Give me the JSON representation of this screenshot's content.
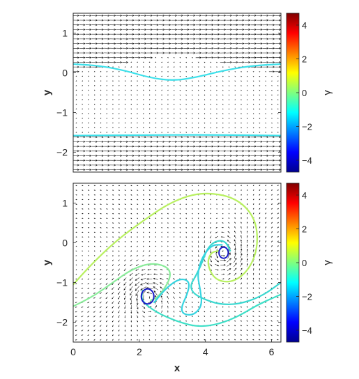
{
  "chart_data": [
    {
      "type": "quiver",
      "title": "",
      "xlabel": "",
      "ylabel": "y",
      "xlim": [
        0,
        6.2832
      ],
      "ylim": [
        -2.5,
        1.5
      ],
      "xticks": [
        "0",
        "2",
        "4",
        "6"
      ],
      "xticks_visible": false,
      "yticks": [
        "1",
        "0",
        "−1",
        "−2"
      ],
      "ytick_values": [
        1,
        0,
        -1,
        -2
      ],
      "field": "shear flow: strong rightward flow for y > 0.2 and y < -1.6, weak return flow between",
      "contour_colors": [
        "#3de0ea",
        "#3de0ea"
      ],
      "contours": [
        {
          "gamma": -1.2,
          "points": [
            [
              0,
              0.22
            ],
            [
              0.8,
              0.18
            ],
            [
              1.6,
              0.05
            ],
            [
              2.3,
              -0.12
            ],
            [
              3.0,
              -0.2
            ],
            [
              3.7,
              -0.12
            ],
            [
              4.5,
              0.05
            ],
            [
              5.4,
              0.18
            ],
            [
              6.2832,
              0.22
            ]
          ]
        },
        {
          "gamma": -1.3,
          "points": [
            [
              0,
              -1.58
            ],
            [
              2,
              -1.57
            ],
            [
              4,
              -1.56
            ],
            [
              6.2832,
              -1.58
            ]
          ]
        }
      ],
      "colorbar": {
        "label": "γ",
        "ticks": [
          "4",
          "2",
          "0",
          "−2",
          "−4"
        ],
        "tick_values": [
          4,
          2,
          0,
          -2,
          -4
        ],
        "range": [
          -4.7,
          4.7
        ],
        "colormap": "jet"
      }
    },
    {
      "type": "quiver",
      "title": "",
      "xlabel": "x",
      "ylabel": "y",
      "xlim": [
        0,
        6.2832
      ],
      "ylim": [
        -2.5,
        1.5
      ],
      "xticks": [
        "0",
        "2",
        "4",
        "6"
      ],
      "xtick_values": [
        0,
        2,
        4,
        6
      ],
      "yticks": [
        "1",
        "0",
        "−1",
        "−2"
      ],
      "ytick_values": [
        1,
        0,
        -1,
        -2
      ],
      "field": "rolled-up shear layer with two co-rotating vortices",
      "vortices": [
        {
          "x": 4.55,
          "y": -0.25
        },
        {
          "x": 2.25,
          "y": -1.35
        }
      ],
      "contours": [
        {
          "gamma": 0.9,
          "color": "#b8f060",
          "points": [
            [
              0,
              -1.05
            ],
            [
              0.6,
              -0.5
            ],
            [
              1.3,
              0.05
            ],
            [
              2.1,
              0.55
            ],
            [
              3.0,
              1.05
            ],
            [
              3.9,
              1.28
            ],
            [
              4.9,
              1.15
            ],
            [
              5.5,
              0.65
            ],
            [
              5.6,
              -0.05
            ],
            [
              5.35,
              -0.65
            ],
            [
              4.85,
              -1.0
            ],
            [
              4.3,
              -0.95
            ],
            [
              4.05,
              -0.55
            ],
            [
              4.15,
              -0.25
            ],
            [
              4.4,
              -0.2
            ]
          ]
        },
        {
          "gamma": 0.4,
          "color": "#8aec9a",
          "points": [
            [
              0,
              -1.6
            ],
            [
              0.6,
              -1.35
            ],
            [
              1.2,
              -1.0
            ],
            [
              1.8,
              -0.65
            ],
            [
              2.4,
              -0.5
            ],
            [
              2.9,
              -0.62
            ],
            [
              2.95,
              -0.9
            ],
            [
              2.6,
              -1.35
            ],
            [
              2.35,
              -1.45
            ]
          ]
        },
        {
          "gamma": -0.3,
          "color": "#3fe0c8",
          "points": [
            [
              6.2832,
              -1.3
            ],
            [
              5.6,
              -1.55
            ],
            [
              5.0,
              -1.85
            ],
            [
              4.4,
              -2.05
            ],
            [
              3.8,
              -2.12
            ],
            [
              3.2,
              -2.0
            ],
            [
              2.5,
              -1.75
            ],
            [
              2.05,
              -1.45
            ],
            [
              2.1,
              -1.2
            ]
          ]
        },
        {
          "gamma": -0.6,
          "color": "#3ad8d0",
          "points": [
            [
              6.2832,
              -1.0
            ],
            [
              5.7,
              -1.35
            ],
            [
              5.0,
              -1.55
            ],
            [
              4.4,
              -1.55
            ],
            [
              3.9,
              -1.4
            ],
            [
              3.6,
              -1.25
            ],
            [
              3.55,
              -1.05
            ],
            [
              3.7,
              -0.85
            ],
            [
              3.9,
              -0.5
            ],
            [
              4.05,
              -0.15
            ],
            [
              4.3,
              0.05
            ],
            [
              4.6,
              0.05
            ],
            [
              4.75,
              -0.2
            ]
          ]
        },
        {
          "gamma": -0.9,
          "color": "#36d4e0",
          "points": [
            [
              2.45,
              -1.5
            ],
            [
              2.8,
              -1.15
            ],
            [
              3.2,
              -0.9
            ],
            [
              3.5,
              -0.95
            ],
            [
              3.5,
              -1.2
            ],
            [
              3.2,
              -1.75
            ],
            [
              3.6,
              -1.85
            ],
            [
              3.9,
              -1.6
            ],
            [
              3.85,
              -1.2
            ],
            [
              3.75,
              -0.8
            ],
            [
              3.9,
              -0.35
            ],
            [
              4.2,
              -0.05
            ],
            [
              4.5,
              -0.05
            ]
          ]
        }
      ],
      "vortex_rings": [
        {
          "gamma": -4.6,
          "color": "#1a1ac8",
          "cx": 4.55,
          "cy": -0.25,
          "r": 0.14
        },
        {
          "gamma": -4.6,
          "color": "#1a1ac8",
          "cx": 2.25,
          "cy": -1.35,
          "r": 0.19
        }
      ],
      "colorbar": {
        "label": "γ",
        "ticks": [
          "4",
          "2",
          "0",
          "−2",
          "−4"
        ],
        "tick_values": [
          4,
          2,
          0,
          -2,
          -4
        ],
        "range": [
          -4.7,
          4.7
        ],
        "colormap": "jet"
      }
    }
  ]
}
